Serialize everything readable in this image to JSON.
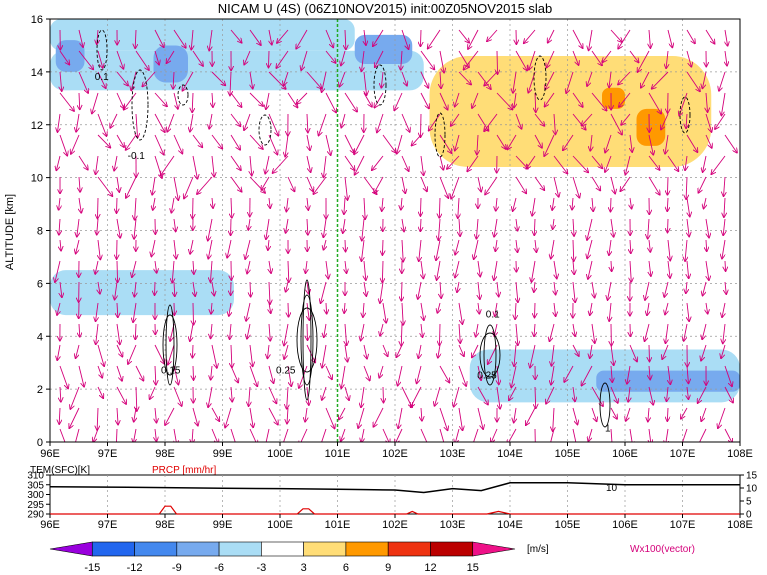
{
  "title": "NICAM U (4S) (06Z10NOV2015) init:00Z05NOV2015 slab",
  "main_panel": {
    "ylabel": "ALTITUDE [km]",
    "x_ticks": [
      "96E",
      "97E",
      "98E",
      "99E",
      "100E",
      "101E",
      "102E",
      "103E",
      "104E",
      "105E",
      "106E",
      "107E",
      "108E"
    ],
    "y_ticks": [
      "0",
      "2",
      "4",
      "6",
      "8",
      "10",
      "12",
      "14",
      "16"
    ],
    "ylim": [
      0,
      16
    ],
    "xlim": [
      96,
      108
    ],
    "marker_line_lon": 101,
    "contour_labels": [
      {
        "text": "0.1",
        "lon": 96.9,
        "alt": 13.7
      },
      {
        "text": "-0.1",
        "lon": 97.5,
        "alt": 10.7
      },
      {
        "text": "0.1",
        "lon": 103.7,
        "alt": 4.7
      },
      {
        "text": "0.15",
        "lon": 98.1,
        "alt": 2.6
      },
      {
        "text": "0.25",
        "lon": 100.1,
        "alt": 2.6
      },
      {
        "text": "0.25",
        "lon": 103.6,
        "alt": 2.4
      },
      {
        "text": "1",
        "lon": 105.7,
        "alt": 0.4
      }
    ]
  },
  "lower_panel": {
    "label_temp": "TEM(SFC)[K]",
    "label_prcp": "PRCP [mm/hr]",
    "left_ticks": [
      "310",
      "305",
      "300",
      "295",
      "290"
    ],
    "right_ticks": [
      "15",
      "10",
      "5",
      "0"
    ],
    "marker_label": "10",
    "x_ticks": [
      "96E",
      "97E",
      "98E",
      "99E",
      "100E",
      "101E",
      "102E",
      "103E",
      "104E",
      "105E",
      "106E",
      "107E",
      "108E"
    ]
  },
  "colorbar": {
    "labels": [
      "-15",
      "-12",
      "-9",
      "-6",
      "-3",
      "3",
      "6",
      "9",
      "12",
      "15"
    ],
    "unit": "[m/s]",
    "colors": [
      "#9900dd",
      "#2266ee",
      "#4488ee",
      "#77aaee",
      "#aaddf5",
      "#ffffff",
      "#ffdd77",
      "#ff9900",
      "#ee3311",
      "#bb0000",
      "#ee1188"
    ]
  },
  "vector_label": "Wx100(vector)",
  "chart_data": {
    "type": "heatmap",
    "title": "NICAM U (4S) (06Z10NOV2015) init:00Z05NOV2015 slab",
    "xlabel": "",
    "ylabel": "ALTITUDE [km]",
    "xlim": [
      96,
      108
    ],
    "ylim": [
      0,
      16
    ],
    "value_unit": "[m/s]",
    "value_levels": [
      -15,
      -12,
      -9,
      -6,
      -3,
      3,
      6,
      9,
      12,
      15
    ],
    "regions": [
      {
        "lon": [
          96.0,
          101.3
        ],
        "alt": [
          14.8,
          16.0
        ],
        "value": -6
      },
      {
        "lon": [
          96.0,
          102.5
        ],
        "alt": [
          13.3,
          14.8
        ],
        "value": -4
      },
      {
        "lon": [
          96.0,
          101.0
        ],
        "alt": [
          11.0,
          13.3
        ],
        "value": -3
      },
      {
        "lon": [
          101.3,
          102.3
        ],
        "alt": [
          14.3,
          15.4
        ],
        "value": -7
      },
      {
        "lon": [
          96.1,
          96.6
        ],
        "alt": [
          14.0,
          15.2
        ],
        "value": -8
      },
      {
        "lon": [
          97.8,
          98.4
        ],
        "alt": [
          13.6,
          15.0
        ],
        "value": -8
      },
      {
        "lon": [
          96.0,
          99.2
        ],
        "alt": [
          4.8,
          6.5
        ],
        "value": -4
      },
      {
        "lon": [
          103.3,
          108.0
        ],
        "alt": [
          1.5,
          3.5
        ],
        "value": -4
      },
      {
        "lon": [
          105.5,
          108.0
        ],
        "alt": [
          1.9,
          2.7
        ],
        "value": -8
      },
      {
        "lon": [
          104.5,
          107.5
        ],
        "alt": [
          4.3,
          5.2
        ],
        "value": -3
      },
      {
        "lon": [
          102.6,
          107.5
        ],
        "alt": [
          10.4,
          14.6
        ],
        "value": 4
      },
      {
        "lon": [
          105.6,
          106.0
        ],
        "alt": [
          12.6,
          13.4
        ],
        "value": 7
      },
      {
        "lon": [
          106.2,
          106.7
        ],
        "alt": [
          11.2,
          12.6
        ],
        "value": 7
      }
    ],
    "surface_temperature": {
      "unit": "K",
      "lon": [
        96,
        97,
        98,
        99,
        100,
        101,
        101.5,
        102,
        102.5,
        103,
        103.5,
        104,
        105,
        106,
        107,
        108
      ],
      "values": [
        304,
        303.8,
        303.5,
        303.2,
        303,
        302.7,
        302.5,
        302.3,
        301,
        303,
        302,
        306,
        306,
        305,
        305,
        305
      ]
    },
    "precipitation": {
      "unit": "mm/hr",
      "lon": [
        96,
        97.9,
        98.0,
        98.1,
        98.2,
        100.3,
        100.4,
        100.5,
        100.6,
        102.2,
        102.3,
        102.4,
        103.6,
        103.8,
        104.0,
        108
      ],
      "values": [
        0,
        0,
        3,
        3,
        0,
        0,
        2,
        2,
        0,
        0,
        1,
        0,
        0,
        1,
        0,
        0
      ]
    }
  }
}
